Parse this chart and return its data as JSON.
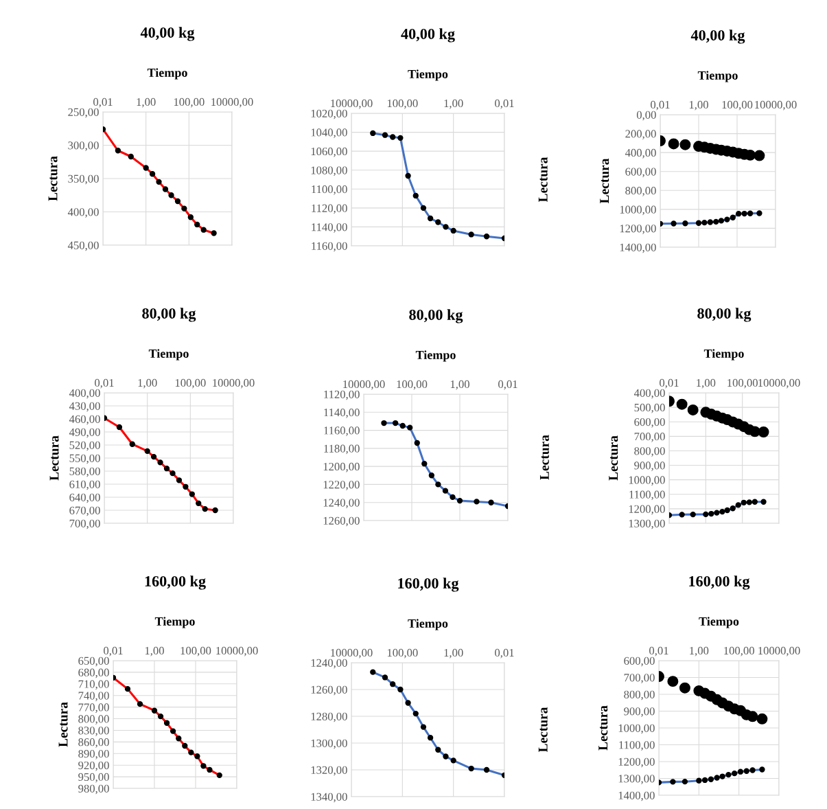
{
  "chart_data": [
    {
      "type": "line",
      "title": "40,00 kg",
      "xlabel": "Tiempo",
      "ylabel": "Lectura",
      "log": "x",
      "grid": true,
      "marker": "circle",
      "line_style": "solid",
      "x": [
        0.01,
        0.05,
        0.2,
        1,
        2,
        4,
        8,
        15,
        30,
        60,
        120,
        240,
        480,
        1440
      ],
      "series": [
        {
          "color": "#ff0000",
          "values": [
            276,
            308,
            317,
            334,
            343,
            355,
            366,
            375,
            384,
            395,
            408,
            419,
            427,
            432
          ]
        }
      ],
      "xlim": [
        0.01,
        10000
      ],
      "xticks": [
        {
          "value": 0.01,
          "label": "0,01"
        },
        {
          "value": 1,
          "label": "1,00"
        },
        {
          "value": 100,
          "label": "100,00"
        },
        {
          "value": 10000,
          "label": "10000,00"
        }
      ],
      "ylim": [
        450,
        250
      ],
      "yticks": [
        {
          "value": 250,
          "label": "250,00"
        },
        {
          "value": 300,
          "label": "300,00"
        },
        {
          "value": 350,
          "label": "350,00"
        },
        {
          "value": 400,
          "label": "400,00"
        },
        {
          "value": 450,
          "label": "450,00"
        }
      ]
    },
    {
      "type": "line",
      "title": "40,00 kg",
      "xlabel": "Tiempo",
      "ylabel": "Lectura",
      "log": "x",
      "grid": true,
      "marker": "circle",
      "line_style": "solid",
      "x": [
        0.01,
        0.05,
        0.2,
        1,
        2,
        4,
        8,
        15,
        30,
        60,
        120,
        240,
        480,
        1440
      ],
      "series": [
        {
          "color": "#4472c4",
          "values": [
            1152,
            1150,
            1148,
            1144,
            1140,
            1135,
            1131,
            1120,
            1107,
            1086,
            1046,
            1045,
            1043,
            1041
          ]
        }
      ],
      "xlim": [
        10000,
        0.01
      ],
      "xticks": [
        {
          "value": 10000,
          "label": "10000,00"
        },
        {
          "value": 100,
          "label": "100,00"
        },
        {
          "value": 1,
          "label": "1,00"
        },
        {
          "value": 0.01,
          "label": "0,01"
        }
      ],
      "ylim": [
        1160,
        1020
      ],
      "yticks": [
        {
          "value": 1020,
          "label": "1020,00"
        },
        {
          "value": 1040,
          "label": "1040,00"
        },
        {
          "value": 1060,
          "label": "1060,00"
        },
        {
          "value": 1080,
          "label": "1080,00"
        },
        {
          "value": 1100,
          "label": "1100,00"
        },
        {
          "value": 1120,
          "label": "1120,00"
        },
        {
          "value": 1140,
          "label": "1140,00"
        },
        {
          "value": 1160,
          "label": "1160,00"
        }
      ]
    },
    {
      "type": "line",
      "title": "40,00 kg",
      "xlabel": "Tiempo",
      "ylabel": "Lectura",
      "log": "x",
      "grid": true,
      "marker": "circle",
      "line_style": "solid",
      "x": [
        0.01,
        0.05,
        0.2,
        1,
        2,
        4,
        8,
        15,
        30,
        60,
        120,
        240,
        480,
        1440
      ],
      "series": [
        {
          "type": "scatter",
          "color": "#000000",
          "values": [
            276,
            308,
            317,
            334,
            343,
            355,
            366,
            375,
            384,
            395,
            408,
            419,
            427,
            432
          ]
        },
        {
          "color": "#4472c4",
          "values": [
            1152,
            1150,
            1148,
            1144,
            1140,
            1135,
            1131,
            1120,
            1107,
            1086,
            1046,
            1045,
            1043,
            1041
          ]
        }
      ],
      "xlim": [
        0.01,
        10000
      ],
      "xticks": [
        {
          "value": 0.01,
          "label": "0,01"
        },
        {
          "value": 1,
          "label": "1,00"
        },
        {
          "value": 100,
          "label": "100,00"
        },
        {
          "value": 10000,
          "label": "10000,00"
        }
      ],
      "ylim": [
        1400,
        0
      ],
      "yticks": [
        {
          "value": 0,
          "label": "0,00"
        },
        {
          "value": 200,
          "label": "200,00"
        },
        {
          "value": 400,
          "label": "400,00"
        },
        {
          "value": 600,
          "label": "600,00"
        },
        {
          "value": 800,
          "label": "800,00"
        },
        {
          "value": 1000,
          "label": "1000,00"
        },
        {
          "value": 1200,
          "label": "1200,00"
        },
        {
          "value": 1400,
          "label": "1400,00"
        }
      ]
    },
    {
      "type": "line",
      "title": "80,00 kg",
      "xlabel": "Tiempo",
      "ylabel": "Lectura",
      "log": "x",
      "grid": true,
      "marker": "circle",
      "line_style": "solid",
      "x": [
        0.01,
        0.05,
        0.2,
        1,
        2,
        4,
        8,
        15,
        30,
        60,
        120,
        240,
        480,
        1440
      ],
      "series": [
        {
          "color": "#ff0000",
          "values": [
            458,
            479,
            518,
            534,
            547,
            560,
            574,
            585,
            601,
            616,
            633,
            654,
            667,
            670
          ]
        }
      ],
      "xlim": [
        0.01,
        10000
      ],
      "xticks": [
        {
          "value": 0.01,
          "label": "0,01"
        },
        {
          "value": 1,
          "label": "1,00"
        },
        {
          "value": 100,
          "label": "100,00"
        },
        {
          "value": 10000,
          "label": "10000,00"
        }
      ],
      "ylim": [
        700,
        400
      ],
      "yticks": [
        {
          "value": 400,
          "label": "400,00"
        },
        {
          "value": 430,
          "label": "430,00"
        },
        {
          "value": 460,
          "label": "460,00"
        },
        {
          "value": 490,
          "label": "490,00"
        },
        {
          "value": 520,
          "label": "520,00"
        },
        {
          "value": 550,
          "label": "550,00"
        },
        {
          "value": 580,
          "label": "580,00"
        },
        {
          "value": 610,
          "label": "610,00"
        },
        {
          "value": 640,
          "label": "640,00"
        },
        {
          "value": 670,
          "label": "670,00"
        },
        {
          "value": 700,
          "label": "700,00"
        }
      ]
    },
    {
      "type": "line",
      "title": "80,00 kg",
      "xlabel": "Tiempo",
      "ylabel": "Lectura",
      "log": "x",
      "grid": true,
      "marker": "circle",
      "line_style": "solid",
      "x": [
        0.01,
        0.05,
        0.2,
        1,
        2,
        4,
        8,
        15,
        30,
        60,
        120,
        240,
        480,
        1440
      ],
      "series": [
        {
          "color": "#4472c4",
          "values": [
            1244,
            1240,
            1239,
            1238,
            1234,
            1227,
            1220,
            1210,
            1197,
            1174,
            1157,
            1155,
            1152,
            1152
          ]
        }
      ],
      "xlim": [
        10000,
        0.01
      ],
      "xticks": [
        {
          "value": 10000,
          "label": "10000,00"
        },
        {
          "value": 100,
          "label": "100,00"
        },
        {
          "value": 1,
          "label": "1,00"
        },
        {
          "value": 0.01,
          "label": "0,01"
        }
      ],
      "ylim": [
        1260,
        1120
      ],
      "yticks": [
        {
          "value": 1120,
          "label": "1120,00"
        },
        {
          "value": 1140,
          "label": "1140,00"
        },
        {
          "value": 1160,
          "label": "1160,00"
        },
        {
          "value": 1180,
          "label": "1180,00"
        },
        {
          "value": 1200,
          "label": "1200,00"
        },
        {
          "value": 1220,
          "label": "1220,00"
        },
        {
          "value": 1240,
          "label": "1240,00"
        },
        {
          "value": 1260,
          "label": "1260,00"
        }
      ]
    },
    {
      "type": "line",
      "title": "80,00 kg",
      "xlabel": "Tiempo",
      "ylabel": "Lectura",
      "log": "x",
      "grid": true,
      "marker": "circle",
      "line_style": "solid",
      "x": [
        0.01,
        0.05,
        0.2,
        1,
        2,
        4,
        8,
        15,
        30,
        60,
        120,
        240,
        480,
        1440
      ],
      "series": [
        {
          "type": "scatter",
          "color": "#000000",
          "values": [
            458,
            479,
            518,
            534,
            547,
            560,
            574,
            585,
            601,
            616,
            633,
            654,
            667,
            670
          ]
        },
        {
          "color": "#4472c4",
          "values": [
            1244,
            1240,
            1239,
            1238,
            1234,
            1227,
            1220,
            1210,
            1197,
            1174,
            1157,
            1155,
            1152,
            1152
          ]
        }
      ],
      "xlim": [
        0.01,
        10000
      ],
      "xticks": [
        {
          "value": 0.01,
          "label": "0,01"
        },
        {
          "value": 1,
          "label": "1,00"
        },
        {
          "value": 100,
          "label": "100,00"
        },
        {
          "value": 10000,
          "label": "10000,00"
        }
      ],
      "ylim": [
        1300,
        400
      ],
      "yticks": [
        {
          "value": 400,
          "label": "400,00"
        },
        {
          "value": 500,
          "label": "500,00"
        },
        {
          "value": 600,
          "label": "600,00"
        },
        {
          "value": 700,
          "label": "700,00"
        },
        {
          "value": 800,
          "label": "800,00"
        },
        {
          "value": 900,
          "label": "900,00"
        },
        {
          "value": 1000,
          "label": "1000,00"
        },
        {
          "value": 1100,
          "label": "1100,00"
        },
        {
          "value": 1200,
          "label": "1200,00"
        },
        {
          "value": 1300,
          "label": "1300,00"
        }
      ]
    },
    {
      "type": "line",
      "title": "160,00 kg",
      "xlabel": "Tiempo",
      "ylabel": "Lectura",
      "log": "x",
      "grid": true,
      "marker": "circle",
      "line_style": "solid",
      "x": [
        0.01,
        0.05,
        0.2,
        1,
        2,
        4,
        8,
        15,
        30,
        60,
        120,
        240,
        480,
        1440
      ],
      "series": [
        {
          "color": "#ff0000",
          "values": [
            694,
            723,
            762,
            779,
            794,
            811,
            832,
            851,
            870,
            887,
            897,
            922,
            932,
            946
          ]
        }
      ],
      "xlim": [
        0.01,
        10000
      ],
      "xticks": [
        {
          "value": 0.01,
          "label": "0,01"
        },
        {
          "value": 1,
          "label": "1,00"
        },
        {
          "value": 100,
          "label": "100,00"
        },
        {
          "value": 10000,
          "label": "10000,00"
        }
      ],
      "ylim": [
        980,
        650
      ],
      "yticks": [
        {
          "value": 650,
          "label": "650,00"
        },
        {
          "value": 680,
          "label": "680,00"
        },
        {
          "value": 710,
          "label": "710,00"
        },
        {
          "value": 740,
          "label": "740,00"
        },
        {
          "value": 770,
          "label": "770,00"
        },
        {
          "value": 800,
          "label": "800,00"
        },
        {
          "value": 830,
          "label": "830,00"
        },
        {
          "value": 860,
          "label": "860,00"
        },
        {
          "value": 890,
          "label": "890,00"
        },
        {
          "value": 920,
          "label": "920,00"
        },
        {
          "value": 950,
          "label": "950,00"
        },
        {
          "value": 980,
          "label": "980,00"
        }
      ]
    },
    {
      "type": "line",
      "title": "160,00 kg",
      "xlabel": "Tiempo",
      "ylabel": "Lectura",
      "log": "x",
      "grid": true,
      "marker": "circle",
      "line_style": "solid",
      "x": [
        0.01,
        0.05,
        0.2,
        1,
        2,
        4,
        8,
        15,
        30,
        60,
        120,
        240,
        480,
        1440
      ],
      "series": [
        {
          "color": "#4472c4",
          "values": [
            1324,
            1320,
            1319,
            1313,
            1310,
            1305,
            1296,
            1288,
            1278,
            1270,
            1260,
            1256,
            1251,
            1247
          ]
        }
      ],
      "xlim": [
        10000,
        0.01
      ],
      "xticks": [
        {
          "value": 10000,
          "label": "10000,00"
        },
        {
          "value": 100,
          "label": "100,00"
        },
        {
          "value": 1,
          "label": "1,00"
        },
        {
          "value": 0.01,
          "label": "0,01"
        }
      ],
      "ylim": [
        1340,
        1240
      ],
      "yticks": [
        {
          "value": 1240,
          "label": "1240,00"
        },
        {
          "value": 1260,
          "label": "1260,00"
        },
        {
          "value": 1280,
          "label": "1280,00"
        },
        {
          "value": 1300,
          "label": "1300,00"
        },
        {
          "value": 1320,
          "label": "1320,00"
        },
        {
          "value": 1340,
          "label": "1340,00"
        }
      ]
    },
    {
      "type": "line",
      "title": "160,00 kg",
      "xlabel": "Tiempo",
      "ylabel": "Lectura",
      "log": "x",
      "grid": true,
      "marker": "circle",
      "line_style": "solid",
      "x": [
        0.01,
        0.05,
        0.2,
        1,
        2,
        4,
        8,
        15,
        30,
        60,
        120,
        240,
        480,
        1440
      ],
      "series": [
        {
          "type": "scatter",
          "color": "#000000",
          "values": [
            694,
            723,
            762,
            779,
            794,
            811,
            832,
            851,
            870,
            887,
            897,
            922,
            932,
            946
          ]
        },
        {
          "color": "#4472c4",
          "values": [
            1324,
            1320,
            1319,
            1313,
            1310,
            1305,
            1296,
            1288,
            1278,
            1270,
            1260,
            1256,
            1251,
            1247
          ]
        }
      ],
      "xlim": [
        0.01,
        10000
      ],
      "xticks": [
        {
          "value": 0.01,
          "label": "0,01"
        },
        {
          "value": 1,
          "label": "1,00"
        },
        {
          "value": 100,
          "label": "100,00"
        },
        {
          "value": 10000,
          "label": "10000,00"
        }
      ],
      "ylim": [
        1400,
        600
      ],
      "yticks": [
        {
          "value": 600,
          "label": "600,00"
        },
        {
          "value": 700,
          "label": "700,00"
        },
        {
          "value": 800,
          "label": "800,00"
        },
        {
          "value": 900,
          "label": "900,00"
        },
        {
          "value": 1000,
          "label": "1000,00"
        },
        {
          "value": 1100,
          "label": "1100,00"
        },
        {
          "value": 1200,
          "label": "1200,00"
        },
        {
          "value": 1300,
          "label": "1300,00"
        },
        {
          "value": 1400,
          "label": "1400,00"
        }
      ]
    }
  ]
}
